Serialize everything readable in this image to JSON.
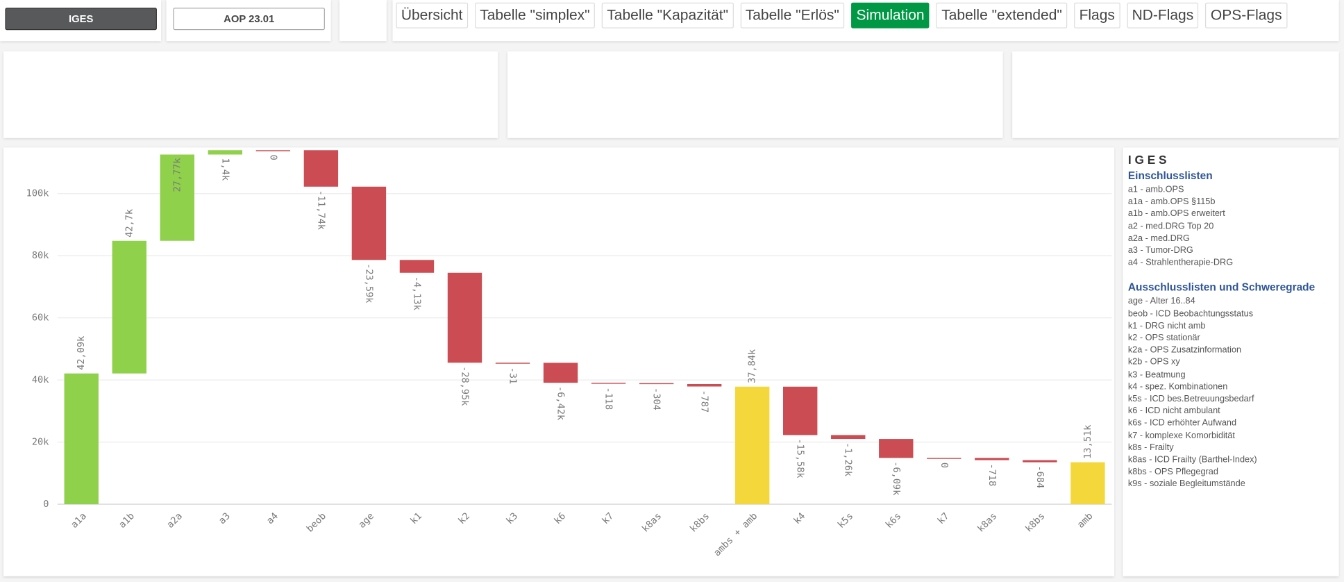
{
  "toolbar": {
    "selections": [
      "IGES",
      "AOP 23.01"
    ],
    "tabs": [
      "Übersicht",
      "Tabelle \"simplex\"",
      "Tabelle \"Kapazität\"",
      "Tabelle \"Erlös\"",
      "Simulation",
      "Tabelle \"extended\"",
      "Flags",
      "ND-Flags",
      "OPS-Flags"
    ],
    "active_tab": 4
  },
  "chart_data": {
    "type": "waterfall",
    "categories": [
      "a1a",
      "a1b",
      "a2a",
      "a3",
      "a4",
      "beob",
      "age",
      "k1",
      "k2",
      "k3",
      "k6",
      "k7",
      "k8as",
      "k8bs",
      "ambs + amb",
      "k4",
      "k5s",
      "k6s",
      "k7",
      "k8as",
      "k8bs",
      "amb"
    ],
    "values": [
      42090,
      42700,
      27770,
      1400,
      0,
      -11740,
      -23590,
      -4130,
      -28950,
      -31,
      -6420,
      -118,
      -304,
      -787,
      37840,
      -15580,
      -1260,
      -6090,
      0,
      -718,
      -684,
      13510
    ],
    "value_labels": [
      "42,09k",
      "42,7k",
      "27,77k",
      "1,4k",
      "0",
      "-11,74k",
      "-23,59k",
      "-4,13k",
      "-28,95k",
      "-31",
      "-6,42k",
      "-118",
      "-304",
      "-787",
      "37,84k",
      "-15,58k",
      "-1,26k",
      "-6,09k",
      "0",
      "-718",
      "-684",
      "13,51k"
    ],
    "measure": [
      "relative",
      "relative",
      "relative",
      "relative",
      "relative",
      "relative",
      "relative",
      "relative",
      "relative",
      "relative",
      "relative",
      "relative",
      "relative",
      "relative",
      "total",
      "relative",
      "relative",
      "relative",
      "relative",
      "relative",
      "relative",
      "total"
    ],
    "colors": {
      "increase": "#8fd14b",
      "decrease": "#cb4c53",
      "total": "#f4d83b"
    },
    "ylim": [
      0,
      114000
    ],
    "yticks": [
      0,
      {
        "value": 20000,
        "label": "20k"
      },
      {
        "value": 40000,
        "label": "40k"
      },
      {
        "value": 60000,
        "label": "60k"
      },
      {
        "value": 80000,
        "label": "80k"
      },
      {
        "value": 100000,
        "label": "100k"
      }
    ],
    "grid": true
  },
  "legend_panel": {
    "title": "I G E S",
    "sections": [
      {
        "heading": "Einschlusslisten",
        "items": [
          "a1 - amb.OPS",
          "a1a - amb.OPS §115b",
          "a1b - amb.OPS erweitert",
          "a2 - med.DRG Top 20",
          "a2a - med.DRG",
          "a3 - Tumor-DRG",
          "a4 - Strahlentherapie-DRG"
        ]
      },
      {
        "heading": "Ausschlusslisten und Schweregrade",
        "items": [
          "age - Alter 16..84",
          "beob - ICD Beobachtungsstatus",
          "k1 - DRG nicht amb",
          "k2 - OPS stationär",
          "k2a - OPS Zusatzinformation",
          "k2b - OPS xy",
          "k3 - Beatmung",
          "k4 - spez. Kombinationen",
          "k5s - ICD bes.Betreuungsbedarf",
          "k6 - ICD nicht ambulant",
          "k6s - ICD erhöhter Aufwand",
          "k7 - komplexe Komorbidität",
          "k8s - Frailty",
          "k8as - ICD Frailty (Barthel-Index)",
          "k8bs - OPS Pflegegrad",
          "k9s - soziale Begleitumstände"
        ]
      }
    ]
  }
}
